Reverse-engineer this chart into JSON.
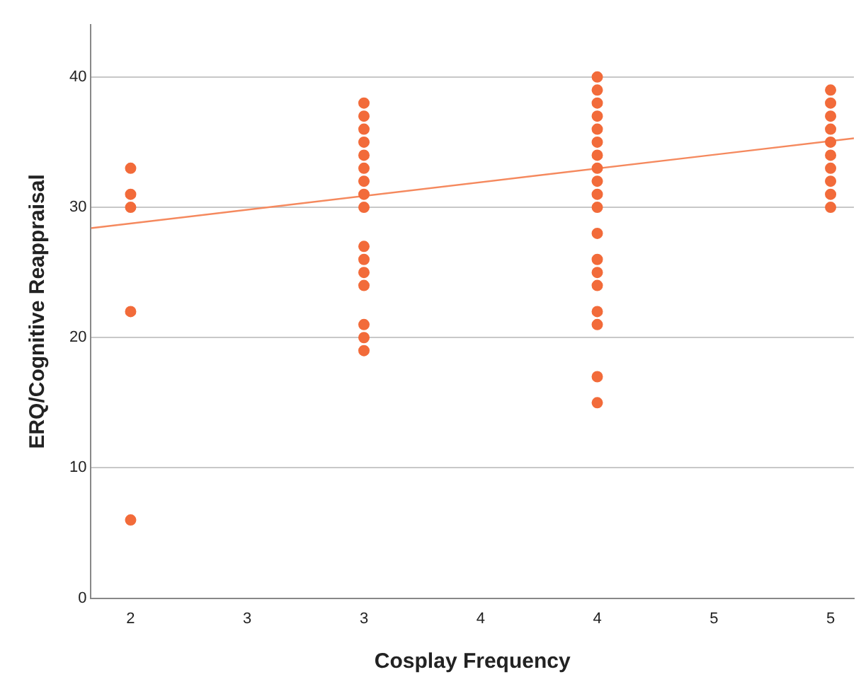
{
  "chart_data": {
    "type": "scatter",
    "xlabel": "Cosplay Frequency",
    "ylabel": "ERQ/Cognitive Reappraisal",
    "xlim": [
      1.83,
      5.1
    ],
    "xticks": [
      2,
      {
        "value": 2.5,
        "label": "3"
      },
      3,
      {
        "value": 3.5,
        "label": "4"
      },
      4,
      {
        "value": 4.5,
        "label": "5"
      },
      5
    ],
    "ylim": [
      0,
      44
    ],
    "yticks": [
      0,
      10,
      20,
      30,
      40
    ],
    "grid": "y",
    "marker": "circle",
    "legend": false,
    "series": [
      {
        "color": "#f26b3a",
        "x": [
          2,
          2,
          2,
          2,
          2,
          3,
          3,
          3,
          3,
          3,
          3,
          3,
          3,
          3,
          3,
          3,
          3,
          3,
          3,
          3,
          3,
          4,
          4,
          4,
          4,
          4,
          4,
          4,
          4,
          4,
          4,
          4,
          4,
          4,
          4,
          4,
          4,
          4,
          4,
          4,
          5,
          5,
          5,
          5,
          5,
          5,
          5,
          5,
          5,
          5
        ],
        "values": [
          33,
          31,
          30,
          22,
          6,
          38,
          37,
          36,
          35,
          34,
          33,
          32,
          31,
          30,
          27,
          26,
          25,
          24,
          21,
          20,
          19,
          40,
          39,
          38,
          37,
          36,
          35,
          34,
          33,
          32,
          31,
          30,
          28,
          26,
          25,
          24,
          22,
          21,
          17,
          15,
          39,
          38,
          37,
          36,
          35,
          34,
          33,
          32,
          31,
          30
        ]
      },
      {
        "type": "line",
        "color": "#f5895e",
        "x": [
          1.83,
          5.1
        ],
        "values": [
          28.4,
          35.3
        ],
        "marker": "none"
      }
    ]
  }
}
